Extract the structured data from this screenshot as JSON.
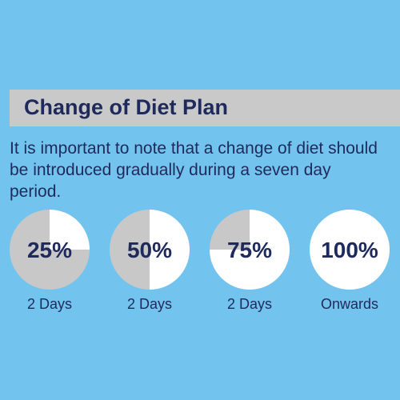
{
  "header": {
    "title": "Change of Diet Plan"
  },
  "body": "It is important to note that a change of diet should be introduced gradually during a seven day period.",
  "items": [
    {
      "value": 25,
      "value_label": "25%",
      "period": "2 Days"
    },
    {
      "value": 50,
      "value_label": "50%",
      "period": "2 Days"
    },
    {
      "value": 75,
      "value_label": "75%",
      "period": "2 Days"
    },
    {
      "value": 100,
      "value_label": "100%",
      "period": "Onwards"
    }
  ]
}
